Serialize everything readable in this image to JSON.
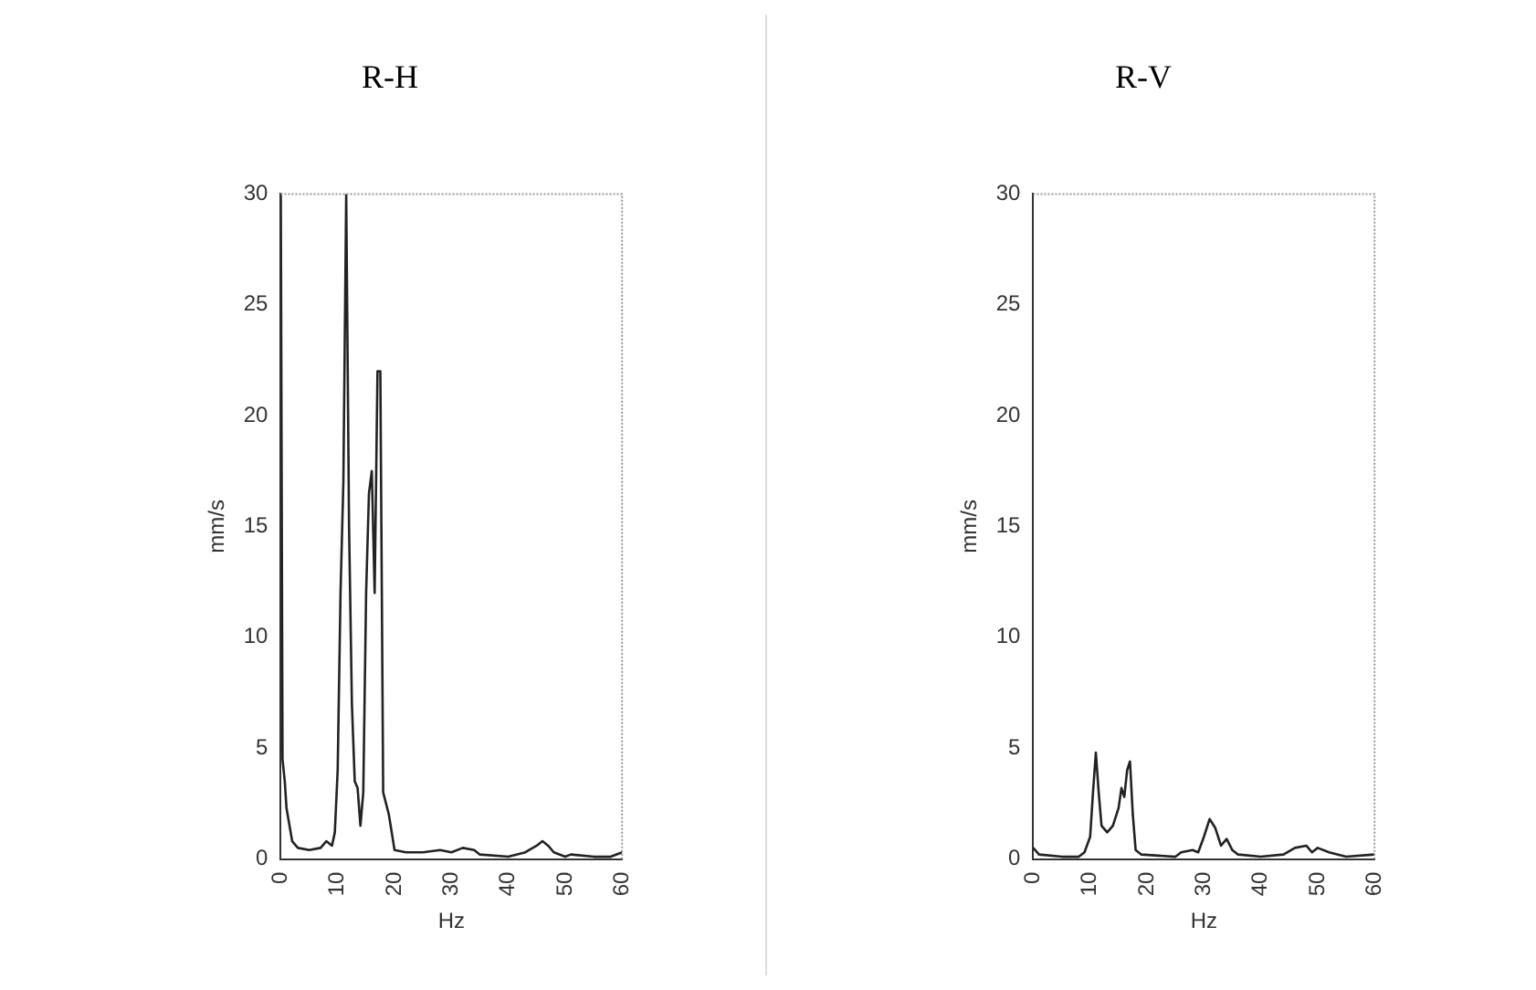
{
  "chart_data": [
    {
      "type": "line",
      "title": "R-H",
      "xlabel": "Hz",
      "ylabel": "mm/s",
      "xlim": [
        0,
        60
      ],
      "xticks": [
        0,
        10,
        20,
        30,
        40,
        50,
        60
      ],
      "ylim": [
        0,
        30
      ],
      "yticks": [
        0,
        5,
        10,
        15,
        20,
        25,
        30
      ],
      "grid": false,
      "legend": false,
      "marker": "none",
      "series": [
        {
          "color": "#222222",
          "x": [
            0,
            0.3,
            0.7,
            1,
            2,
            3,
            5,
            7,
            8,
            9,
            9.5,
            10,
            10.5,
            11,
            11.5,
            12,
            12.5,
            13,
            13.5,
            14,
            14.5,
            15,
            15.5,
            16,
            16.5,
            17,
            17.5,
            18,
            19,
            20,
            22,
            25,
            28,
            30,
            32,
            34,
            35,
            40,
            43,
            45,
            46,
            47,
            48,
            50,
            51,
            55,
            58,
            60
          ],
          "values": [
            30,
            4.5,
            3.5,
            2.3,
            0.8,
            0.5,
            0.4,
            0.5,
            0.8,
            0.6,
            1.2,
            4,
            12,
            17,
            30,
            15,
            7,
            3.5,
            3.2,
            1.5,
            3,
            12,
            16.5,
            17.5,
            12,
            22,
            22,
            3,
            2,
            0.4,
            0.3,
            0.3,
            0.4,
            0.3,
            0.5,
            0.4,
            0.2,
            0.1,
            0.3,
            0.6,
            0.8,
            0.6,
            0.3,
            0.1,
            0.2,
            0.1,
            0.1,
            0.3
          ]
        }
      ]
    },
    {
      "type": "line",
      "title": "R-V",
      "xlabel": "Hz",
      "ylabel": "mm/s",
      "xlim": [
        0,
        60
      ],
      "xticks": [
        0,
        10,
        20,
        30,
        40,
        50,
        60
      ],
      "ylim": [
        0,
        30
      ],
      "yticks": [
        0,
        5,
        10,
        15,
        20,
        25,
        30
      ],
      "grid": false,
      "legend": false,
      "marker": "none",
      "series": [
        {
          "color": "#222222",
          "x": [
            0,
            1,
            5,
            8,
            9,
            10,
            10.5,
            11,
            11.5,
            12,
            13,
            14,
            15,
            15.5,
            16,
            16.5,
            17,
            17.5,
            18,
            19,
            25,
            26,
            28,
            29,
            30,
            31,
            32,
            33,
            34,
            35,
            36,
            40,
            44,
            46,
            48,
            49,
            50,
            52,
            55,
            60
          ],
          "values": [
            0.5,
            0.2,
            0.1,
            0.1,
            0.3,
            1,
            3,
            4.8,
            3,
            1.5,
            1.2,
            1.5,
            2.3,
            3.2,
            2.8,
            4,
            4.4,
            2,
            0.4,
            0.2,
            0.1,
            0.3,
            0.4,
            0.3,
            1,
            1.8,
            1.4,
            0.6,
            0.9,
            0.4,
            0.2,
            0.1,
            0.2,
            0.5,
            0.6,
            0.3,
            0.5,
            0.3,
            0.1,
            0.2
          ]
        }
      ]
    }
  ]
}
